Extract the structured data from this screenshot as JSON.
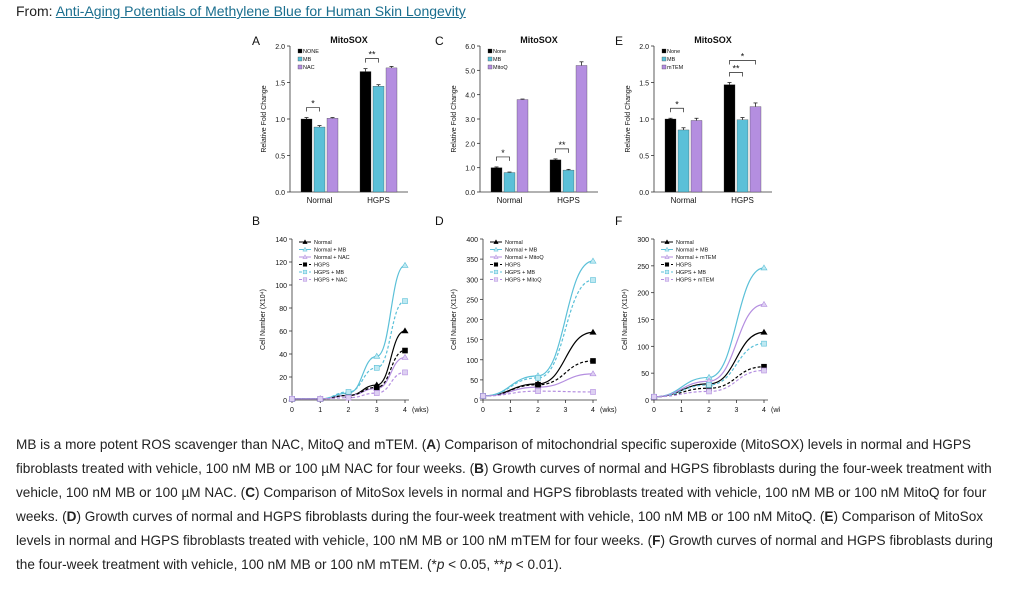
{
  "header": {
    "prefix": "From:",
    "link_text": "Anti-Aging Potentials of Methylene Blue for Human Skin Longevity"
  },
  "colors": {
    "none": "#000000",
    "mb": "#5bc0d8",
    "third": "#b48ee0"
  },
  "chart_data": [
    {
      "panel": "A",
      "type": "bar",
      "title": "MitoSOX",
      "ylabel": "Relative Fold Change",
      "ylim": [
        0,
        2.0
      ],
      "yticks": [
        "0.0",
        "0.5",
        "1.0",
        "1.5",
        "2.0"
      ],
      "categories": [
        "Normal",
        "HGPS"
      ],
      "series": [
        {
          "name": "NONE",
          "values": [
            1.0,
            1.65
          ]
        },
        {
          "name": "MB",
          "values": [
            0.89,
            1.45
          ]
        },
        {
          "name": "NAC",
          "values": [
            1.01,
            1.7
          ]
        }
      ],
      "errors": [
        [
          0.02,
          0.04
        ],
        [
          0.02,
          0.02
        ],
        [
          0.01,
          0.02
        ]
      ],
      "sig": [
        {
          "cat": 0,
          "label": "*"
        },
        {
          "cat": 1,
          "label": "**"
        }
      ]
    },
    {
      "panel": "C",
      "type": "bar",
      "title": "MitoSOX",
      "ylabel": "Relative Fold Change",
      "ylim": [
        0,
        6.0
      ],
      "yticks": [
        "0.0",
        "1.0",
        "2.0",
        "3.0",
        "4.0",
        "5.0",
        "6.0"
      ],
      "categories": [
        "Normal",
        "HGPS"
      ],
      "series": [
        {
          "name": "None",
          "values": [
            1.0,
            1.32
          ]
        },
        {
          "name": "MB",
          "values": [
            0.8,
            0.9
          ]
        },
        {
          "name": "MitoQ",
          "values": [
            3.8,
            5.2
          ]
        }
      ],
      "errors": [
        [
          0.03,
          0.04
        ],
        [
          0.02,
          0.03
        ],
        [
          0.02,
          0.15
        ]
      ],
      "sig": [
        {
          "cat": 0,
          "label": "*"
        },
        {
          "cat": 1,
          "label": "**"
        }
      ]
    },
    {
      "panel": "E",
      "type": "bar",
      "title": "MitoSOX",
      "ylabel": "Relative Fold Change",
      "ylim": [
        0,
        2.0
      ],
      "yticks": [
        "0.0",
        "0.5",
        "1.0",
        "1.5",
        "2.0"
      ],
      "categories": [
        "Normal",
        "HGPS"
      ],
      "series": [
        {
          "name": "None",
          "values": [
            1.0,
            1.47
          ]
        },
        {
          "name": "MB",
          "values": [
            0.85,
            0.99
          ]
        },
        {
          "name": "mTEM",
          "values": [
            0.98,
            1.17
          ]
        }
      ],
      "errors": [
        [
          0.01,
          0.03
        ],
        [
          0.03,
          0.03
        ],
        [
          0.03,
          0.05
        ]
      ],
      "sig": [
        {
          "cat": 0,
          "label": "*"
        },
        {
          "cat": 1,
          "label": "**"
        },
        {
          "cat": 1,
          "label": "*",
          "wide": true
        }
      ]
    },
    {
      "panel": "B",
      "type": "line",
      "ylabel": "Cell Number (X10⁴)",
      "xlabel": "(wks)",
      "xticks": [
        0,
        1,
        2,
        3,
        4
      ],
      "ylim": [
        0,
        140
      ],
      "yticks": [
        0,
        20,
        40,
        60,
        80,
        100,
        120,
        140
      ],
      "series": [
        {
          "name": "Normal",
          "x": [
            0,
            1,
            2,
            3,
            4
          ],
          "values": [
            1,
            1,
            4,
            13,
            60
          ]
        },
        {
          "name": "Normal + MB",
          "x": [
            0,
            1,
            2,
            3,
            4
          ],
          "values": [
            1,
            1,
            6,
            38,
            117
          ]
        },
        {
          "name": "Normal + NAC",
          "x": [
            0,
            1,
            2,
            3,
            4
          ],
          "values": [
            1,
            1,
            4,
            10,
            37
          ]
        },
        {
          "name": "HGPS",
          "x": [
            0,
            1,
            2,
            3,
            4
          ],
          "values": [
            1,
            1,
            4,
            11,
            43
          ]
        },
        {
          "name": "HGPS + MB",
          "x": [
            0,
            1,
            2,
            3,
            4
          ],
          "values": [
            1,
            1,
            7,
            28,
            86
          ]
        },
        {
          "name": "HGPS + NAC",
          "x": [
            0,
            1,
            2,
            3,
            4
          ],
          "values": [
            1,
            1,
            2,
            6,
            24
          ]
        }
      ]
    },
    {
      "panel": "D",
      "type": "line",
      "ylabel": "Cell Number (X10⁴)",
      "xlabel": "(wks)",
      "xticks": [
        0,
        1,
        2,
        3,
        4
      ],
      "ylim": [
        0,
        400
      ],
      "yticks": [
        0,
        50,
        100,
        150,
        200,
        250,
        300,
        350,
        400
      ],
      "series": [
        {
          "name": "Normal",
          "x": [
            0,
            2,
            4
          ],
          "values": [
            10,
            40,
            168
          ]
        },
        {
          "name": "Normal + MB",
          "x": [
            0,
            2,
            4
          ],
          "values": [
            10,
            60,
            345
          ]
        },
        {
          "name": "Normal + MitoQ",
          "x": [
            0,
            2,
            4
          ],
          "values": [
            10,
            32,
            65
          ]
        },
        {
          "name": "HGPS",
          "x": [
            0,
            2,
            4
          ],
          "values": [
            10,
            38,
            97
          ]
        },
        {
          "name": "HGPS + MB",
          "x": [
            0,
            2,
            4
          ],
          "values": [
            10,
            55,
            298
          ]
        },
        {
          "name": "HGPS + MitoQ",
          "x": [
            0,
            2,
            4
          ],
          "values": [
            10,
            22,
            20
          ]
        }
      ]
    },
    {
      "panel": "F",
      "type": "line",
      "ylabel": "Cell Number (X10⁴)",
      "xlabel": "(wks)",
      "xticks": [
        0,
        1,
        2,
        3,
        4
      ],
      "ylim": [
        0,
        300
      ],
      "yticks": [
        0,
        50,
        100,
        150,
        200,
        250,
        300
      ],
      "series": [
        {
          "name": "Normal",
          "x": [
            0,
            2,
            4
          ],
          "values": [
            6,
            30,
            126
          ]
        },
        {
          "name": "Normal + MB",
          "x": [
            0,
            2,
            4
          ],
          "values": [
            6,
            42,
            246
          ]
        },
        {
          "name": "Normal + mTEM",
          "x": [
            0,
            2,
            4
          ],
          "values": [
            6,
            35,
            178
          ]
        },
        {
          "name": "HGPS",
          "x": [
            0,
            2,
            4
          ],
          "values": [
            6,
            22,
            62
          ]
        },
        {
          "name": "HGPS + MB",
          "x": [
            0,
            2,
            4
          ],
          "values": [
            6,
            28,
            105
          ]
        },
        {
          "name": "HGPS + mTEM",
          "x": [
            0,
            2,
            4
          ],
          "values": [
            6,
            16,
            55
          ]
        }
      ]
    }
  ],
  "caption": [
    {
      "t": "MB is a more potent ROS scavenger than NAC, MitoQ and mTEM. ("
    },
    {
      "t": "A",
      "b": true
    },
    {
      "t": ") Comparison of mitochondrial specific superoxide (MitoSOX) levels in normal and HGPS fibroblasts treated with vehicle, 100 nM MB or 100 µM NAC for four weeks. ("
    },
    {
      "t": "B",
      "b": true
    },
    {
      "t": ") Growth curves of normal and HGPS fibroblasts during the four-week treatment with vehicle, 100 nM MB or 100 µM NAC. ("
    },
    {
      "t": "C",
      "b": true
    },
    {
      "t": ") Comparison of MitoSox levels in normal and HGPS fibroblasts treated with vehicle, 100 nM MB or 100 nM MitoQ for four weeks. ("
    },
    {
      "t": "D",
      "b": true
    },
    {
      "t": ") Growth curves of normal and HGPS fibroblasts during the four-week treatment with vehicle, 100 nM MB or 100 nM MitoQ. ("
    },
    {
      "t": "E",
      "b": true
    },
    {
      "t": ") Comparison of MitoSox levels in normal and HGPS fibroblasts treated with vehicle, 100 nM MB or 100 nM mTEM for four weeks. ("
    },
    {
      "t": "F",
      "b": true
    },
    {
      "t": ") Growth curves of normal and HGPS fibroblasts during the four-week treatment with vehicle, 100 nM MB or 100 nM mTEM. (*"
    },
    {
      "t": "p",
      "i": true
    },
    {
      "t": " < 0.05, **"
    },
    {
      "t": "p",
      "i": true
    },
    {
      "t": " < 0.01)."
    }
  ]
}
